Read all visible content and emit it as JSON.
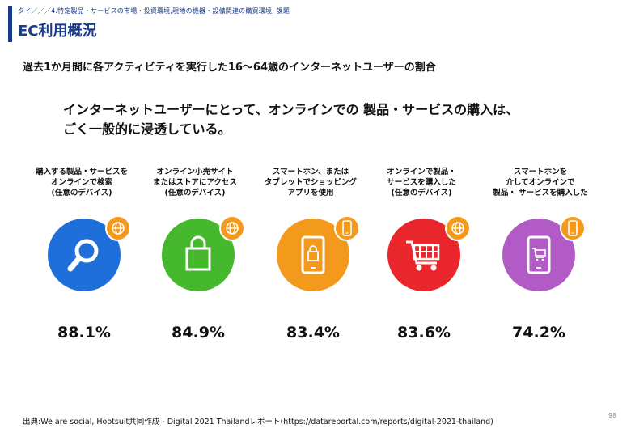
{
  "header": {
    "breadcrumb": "タイ／／／4.特定製品・サービスの市場・投資環境,現地の機器・設備関連の購買環境, 課題",
    "title": "EC利用概況",
    "accent_color": "#1a3a8a"
  },
  "subtitle": "過去1か月間に各アクティビティを実行した16～64歳のインターネットユーザーの割合",
  "headline": {
    "line1": "インターネットユーザーにとって、オンラインでの 製品・サービスの購入は、",
    "line2": "ごく一般的に浸透している。"
  },
  "chart_data": {
    "type": "bar",
    "title": "過去1か月間に各アクティビティを実行した16～64歳のインターネットユーザーの割合",
    "categories": [
      "購入する製品・サービスを\nオンラインで検索\n(任意のデバイス)",
      "オンライン小売サイト\nまたはストアにアクセス\n(任意のデバイス)",
      "スマートホン、または\nタブレットでショッピング\nアプリを使用",
      "オンラインで製品・\nサービスを購入した\n(任意のデバイス)",
      "スマートホンを\n介してオンラインで\n製品・ サービスを購入した"
    ],
    "values": [
      88.1,
      84.9,
      83.4,
      83.6,
      74.2
    ],
    "value_labels": [
      "88.1%",
      "84.9%",
      "83.4%",
      "83.6%",
      "74.2%"
    ],
    "colors": [
      "#1e6fd9",
      "#46b82e",
      "#f39a1c",
      "#e8262b",
      "#b25bc6"
    ],
    "icons": [
      "magnifier-icon",
      "shopping-bag-icon",
      "smartphone-bag-icon",
      "shopping-cart-icon",
      "smartphone-cart-icon"
    ],
    "badges": [
      "globe-icon",
      "globe-icon",
      "smartphone-icon",
      "globe-icon",
      "smartphone-icon"
    ],
    "badge_color": "#f39a1c"
  },
  "source": "出典:We are social, Hootsuit共同作成 - Digital 2021 Thailandレポート(https://datareportal.com/reports/digital-2021-thailand)",
  "page_number": "98"
}
